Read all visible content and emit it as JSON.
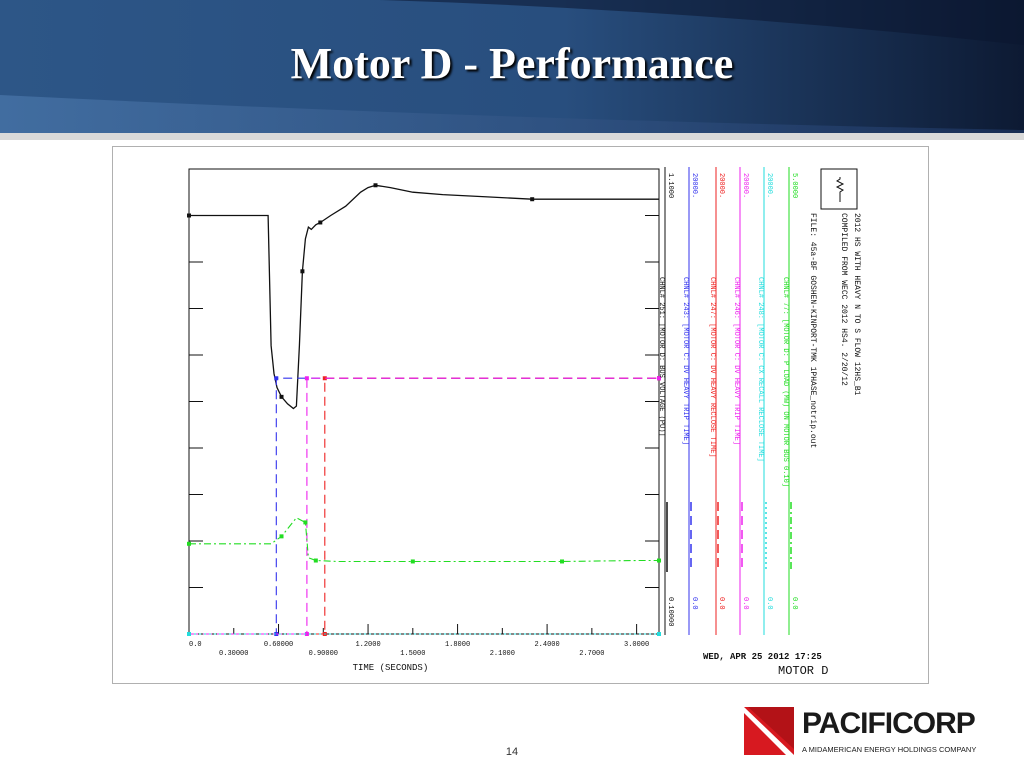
{
  "slide": {
    "title": "Motor D - Performance",
    "page_number": "14"
  },
  "logo": {
    "wordmark": "PACIFICORP",
    "tagline": "A MIDAMERICAN ENERGY HOLDINGS COMPANY",
    "colors": {
      "red": "#d71920",
      "dark": "#1a1a1a"
    }
  },
  "colors": {
    "banner_dark": "#0b1830",
    "banner_mid": "#2b5486",
    "banner_light": "#4d78aa",
    "black": "#111111",
    "blue": "#3333ee",
    "red": "#ee2222",
    "magenta": "#ee22ee",
    "cyan": "#22dddd",
    "green": "#22dd22"
  },
  "chart_data": {
    "type": "line",
    "xlabel": "TIME (SECONDS)",
    "xlim": [
      0,
      3.15
    ],
    "x_ticks_upper": [
      "0.0",
      "0.60000",
      "1.2000",
      "1.8000",
      "2.4000",
      "3.0000"
    ],
    "x_ticks_lower": [
      "0.30000",
      "0.90000",
      "1.5000",
      "2.1000",
      "2.7000"
    ],
    "header": {
      "line1": "2012 HS WITH HEAVY N TO S FLOW   12HS_B1",
      "line2": "COMPILED FROM WECC 2012 HS4.            2/20/12",
      "line3": "FILE: 45a-BF GOSHEN-KINPORT-TMK 1PHASE_notrip.out"
    },
    "footer": {
      "date": "WED, APR 25 2012    17:25",
      "name": "MOTOR D"
    },
    "series": [
      {
        "name": "CHNL# 251: [MOTOR D: BUS VOLTAGE (PU)]",
        "color": "black",
        "style": "solid",
        "scale_max": "1.1000",
        "scale_min": "0.10000",
        "range": [
          0.1,
          1.1
        ],
        "x": [
          0,
          0.53,
          0.55,
          0.57,
          0.59,
          0.62,
          0.66,
          0.7,
          0.72,
          0.74,
          0.76,
          0.78,
          0.8,
          0.82,
          0.85,
          0.88,
          0.95,
          1.05,
          1.15,
          1.2,
          1.25,
          1.35,
          1.5,
          1.7,
          2.0,
          2.3,
          2.6,
          2.9,
          3.15
        ],
        "y": [
          1.0,
          1.0,
          0.72,
          0.66,
          0.63,
          0.61,
          0.595,
          0.585,
          0.59,
          0.72,
          0.88,
          0.95,
          0.975,
          0.97,
          0.98,
          0.985,
          1.0,
          1.02,
          1.05,
          1.06,
          1.065,
          1.06,
          1.05,
          1.045,
          1.04,
          1.035,
          1.035,
          1.035,
          1.035
        ]
      },
      {
        "name": "CHNL# 243: [MOTOR C: DV HEAVY TRIP TIME]",
        "color": "blue",
        "style": "dashed",
        "scale_max": "20000.",
        "scale_min": "0.0",
        "range": [
          0,
          20000
        ],
        "x": [
          0,
          0.585,
          0.585,
          3.15
        ],
        "y": [
          0,
          0,
          11000,
          11000
        ]
      },
      {
        "name": "CHNL# 247: [MOTOR C: DV HEAVY RECLOSE TIME]",
        "color": "red",
        "style": "dashed",
        "scale_max": "20000.",
        "scale_min": "0.0",
        "range": [
          0,
          20000
        ],
        "x": [
          0,
          0.91,
          0.91,
          3.15
        ],
        "y": [
          0,
          0,
          11000,
          11000
        ]
      },
      {
        "name": "CHNL# 246: [MOTOR C: DV HEAVY TRIP TIME]",
        "color": "magenta",
        "style": "dashed",
        "scale_max": "20000.",
        "scale_min": "0.0",
        "range": [
          0,
          20000
        ],
        "x": [
          0,
          0.79,
          0.79,
          3.15
        ],
        "y": [
          0,
          0,
          11000,
          11000
        ]
      },
      {
        "name": "CHNL# 248: [MOTOR C: CX RECALL RECLOSE TIME]",
        "color": "cyan",
        "style": "dotted",
        "scale_max": "20000.",
        "scale_min": "0.0",
        "range": [
          0,
          20000
        ],
        "x": [
          0,
          3.15
        ],
        "y": [
          0,
          0
        ]
      },
      {
        "name": "CHNL# 77: [MOTOR D: P LOAD (MW) ON MOTOR BUS 0.10]",
        "color": "green",
        "style": "dashdot",
        "scale_max": "5.0000",
        "scale_min": "0.0",
        "range": [
          0,
          5
        ],
        "x": [
          0,
          0.55,
          0.62,
          0.72,
          0.78,
          0.8,
          0.85,
          1.0,
          1.5,
          2.0,
          2.5,
          3.0,
          3.15
        ],
        "y": [
          0.97,
          0.97,
          1.05,
          1.25,
          1.2,
          0.82,
          0.79,
          0.78,
          0.78,
          0.78,
          0.78,
          0.79,
          0.79
        ]
      }
    ],
    "grid": false
  }
}
